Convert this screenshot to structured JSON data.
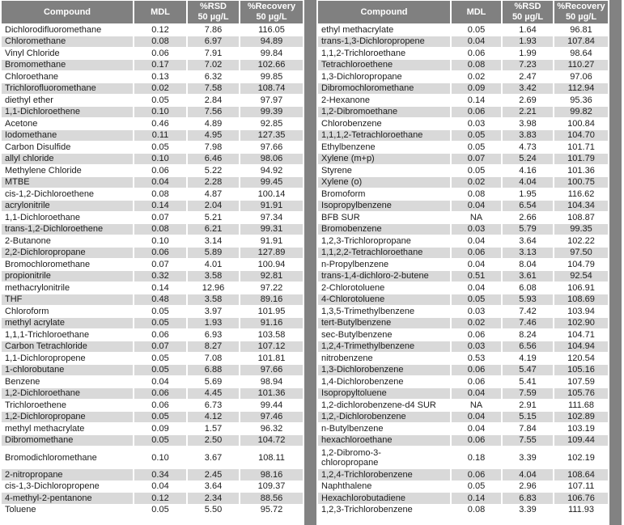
{
  "header": {
    "compound": "Compound",
    "mdl": "MDL",
    "rsd": "%RSD\n50 µg/L",
    "recovery": "%Recovery\n50 µg/L"
  },
  "colors": {
    "header_bg": "#808080",
    "header_text": "#ffffff",
    "alt_row_bg": "#d9d9d9",
    "row_bg": "#ffffff",
    "strip_bg": "#828282",
    "text": "#1c1c1c"
  },
  "tables": {
    "left": {
      "tall_row": {
        "index": 36,
        "wrap": false
      },
      "rows": [
        [
          "Dichlorodifluoromethane",
          "0.12",
          "7.86",
          "116.05"
        ],
        [
          "Chloromethane",
          "0.08",
          "6.97",
          "94.89"
        ],
        [
          "Vinyl Chloride",
          "0.06",
          "7.91",
          "99.84"
        ],
        [
          "Bromomethane",
          "0.17",
          "7.02",
          "102.66"
        ],
        [
          "Chloroethane",
          "0.13",
          "6.32",
          "99.85"
        ],
        [
          "Trichlorofluoromethane",
          "0.02",
          "7.58",
          "108.74"
        ],
        [
          "diethyl ether",
          "0.05",
          "2.84",
          "97.97"
        ],
        [
          "1,1-Dichloroethene",
          "0.10",
          "7.56",
          "99.39"
        ],
        [
          "Acetone",
          "0.46",
          "4.89",
          "92.85"
        ],
        [
          "Iodomethane",
          "0.11",
          "4.95",
          "127.35"
        ],
        [
          "Carbon Disulfide",
          "0.05",
          "7.98",
          "97.66"
        ],
        [
          "allyl chloride",
          "0.10",
          "6.46",
          "98.06"
        ],
        [
          "Methylene Chloride",
          "0.06",
          "5.22",
          "94.92"
        ],
        [
          "MTBE",
          "0.04",
          "2.28",
          "99.45"
        ],
        [
          "cis-1,2-Dichloroethene",
          "0.08",
          "4.87",
          "100.14"
        ],
        [
          "acrylonitrile",
          "0.14",
          "2.04",
          "91.91"
        ],
        [
          "1,1-Dichloroethane",
          "0.07",
          "5.21",
          "97.34"
        ],
        [
          "trans-1,2-Dichloroethene",
          "0.08",
          "6.21",
          "99.31"
        ],
        [
          "2-Butanone",
          "0.10",
          "3.14",
          "91.91"
        ],
        [
          "2,2-Dichloropropane",
          "0.06",
          "5.89",
          "127.89"
        ],
        [
          "Bromochloromethane",
          "0.07",
          "4.01",
          "100.94"
        ],
        [
          "propionitrile",
          "0.32",
          "3.58",
          "92.81"
        ],
        [
          "methacrylonitrile",
          "0.14",
          "12.96",
          "97.22"
        ],
        [
          "THF",
          "0.48",
          "3.58",
          "89.16"
        ],
        [
          "Chloroform",
          "0.05",
          "3.97",
          "101.95"
        ],
        [
          "methyl acrylate",
          "0.05",
          "1.93",
          "91.16"
        ],
        [
          "1,1,1-Trichloroethane",
          "0.06",
          "6.93",
          "103.58"
        ],
        [
          "Carbon Tetrachloride",
          "0.07",
          "8.27",
          "107.12"
        ],
        [
          "1,1-Dichloropropene",
          "0.05",
          "7.08",
          "101.81"
        ],
        [
          "1-chlorobutane",
          "0.05",
          "6.88",
          "97.66"
        ],
        [
          "Benzene",
          "0.04",
          "5.69",
          "98.94"
        ],
        [
          "1,2-Dichloroethane",
          "0.06",
          "4.45",
          "101.36"
        ],
        [
          "Trichloroethene",
          "0.06",
          "6.73",
          "99.44"
        ],
        [
          "1,2-Dichloropropane",
          "0.05",
          "4.12",
          "97.46"
        ],
        [
          "methyl methacrylate",
          "0.09",
          "1.57",
          "96.32"
        ],
        [
          "Dibromomethane",
          "0.05",
          "2.50",
          "104.72"
        ],
        [
          "Bromodichloromethane",
          "0.10",
          "3.67",
          "108.11"
        ],
        [
          "2-nitropropane",
          "0.34",
          "2.45",
          "98.16"
        ],
        [
          "cis-1,3-Dichloropropene",
          "0.04",
          "3.64",
          "109.37"
        ],
        [
          "4-methyl-2-pentanone",
          "0.12",
          "2.34",
          "88.56"
        ],
        [
          "Toluene",
          "0.05",
          "5.50",
          "95.72"
        ]
      ]
    },
    "right": {
      "tall_row": {
        "index": 36,
        "wrap": true
      },
      "rows": [
        [
          "ethyl methacrylate",
          "0.05",
          "1.64",
          "96.81"
        ],
        [
          "trans-1,3-Dichloropropene",
          "0.04",
          "1.93",
          "107.84"
        ],
        [
          "1,1,2-Trichloroethane",
          "0.06",
          "1.99",
          "98.64"
        ],
        [
          "Tetrachloroethene",
          "0.08",
          "7.23",
          "110.27"
        ],
        [
          "1,3-Dichloropropane",
          "0.02",
          "2.47",
          "97.06"
        ],
        [
          "Dibromochloromethane",
          "0.09",
          "3.42",
          "112.94"
        ],
        [
          "2-Hexanone",
          "0.14",
          "2.69",
          "95.36"
        ],
        [
          "1,2-Dibromoethane",
          "0.06",
          "2.21",
          "99.82"
        ],
        [
          "Chlorobenzene",
          "0.03",
          "3.98",
          "100.84"
        ],
        [
          "1,1,1,2-Tetrachloroethane",
          "0.05",
          "3.83",
          "104.70"
        ],
        [
          "Ethylbenzene",
          "0.05",
          "4.73",
          "101.71"
        ],
        [
          "Xylene (m+p)",
          "0.07",
          "5.24",
          "101.79"
        ],
        [
          "Styrene",
          "0.05",
          "4.16",
          "101.36"
        ],
        [
          "Xylene (o)",
          "0.02",
          "4.04",
          "100.75"
        ],
        [
          "Bromoform",
          "0.08",
          "1.95",
          "116.62"
        ],
        [
          "Isopropylbenzene",
          "0.04",
          "6.54",
          "104.34"
        ],
        [
          "BFB SUR",
          "NA",
          "2.66",
          "108.87"
        ],
        [
          "Bromobenzene",
          "0.03",
          "5.79",
          "99.35"
        ],
        [
          "1,2,3-Trichloropropane",
          "0.04",
          "3.64",
          "102.22"
        ],
        [
          "1,1,2,2-Tetrachloroethane",
          "0.06",
          "3.13",
          "97.50"
        ],
        [
          "n-Propylbenzene",
          "0.04",
          "8.04",
          "104.79"
        ],
        [
          "trans-1,4-dichloro-2-butene",
          "0.51",
          "3.61",
          "92.54"
        ],
        [
          "2-Chlorotoluene",
          "0.04",
          "6.08",
          "106.91"
        ],
        [
          "4-Chlorotoluene",
          "0.05",
          "5.93",
          "108.69"
        ],
        [
          "1,3,5-Trimethylbenzene",
          "0.03",
          "7.42",
          "103.94"
        ],
        [
          "tert-Butylbenzene",
          "0.02",
          "7.46",
          "102.90"
        ],
        [
          "sec-Butylbenzene",
          "0.06",
          "8.24",
          "104.71"
        ],
        [
          "1,2,4-Trimethylbenzene",
          "0.03",
          "6.56",
          "104.94"
        ],
        [
          "nitrobenzene",
          "0.53",
          "4.19",
          "120.54"
        ],
        [
          "1,3-Dichlorobenzene",
          "0.06",
          "5.47",
          "105.16"
        ],
        [
          "1,4-Dichlorobenzene",
          "0.06",
          "5.41",
          "107.59"
        ],
        [
          "Isopropyltoluene",
          "0.04",
          "7.59",
          "105.76"
        ],
        [
          "1,2-dichlorobenzene-d4 SUR",
          "NA",
          "2.91",
          "111.68"
        ],
        [
          "1,2,-Dichlorobenzene",
          "0.04",
          "5.15",
          "102.89"
        ],
        [
          "n-Butylbenzene",
          "0.04",
          "7.84",
          "103.19"
        ],
        [
          "hexachloroethane",
          "0.06",
          "7.55",
          "109.44"
        ],
        [
          "1,2-Dibromo-3-chloropropane",
          "0.18",
          "3.39",
          "102.19"
        ],
        [
          "1,2,4-Trichlorobenzene",
          "0.06",
          "4.04",
          "108.64"
        ],
        [
          "Naphthalene",
          "0.05",
          "2.96",
          "107.11"
        ],
        [
          "Hexachlorobutadiene",
          "0.14",
          "6.83",
          "106.76"
        ],
        [
          "1,2,3-Trichlorobenzene",
          "0.08",
          "3.39",
          "111.93"
        ]
      ]
    }
  }
}
